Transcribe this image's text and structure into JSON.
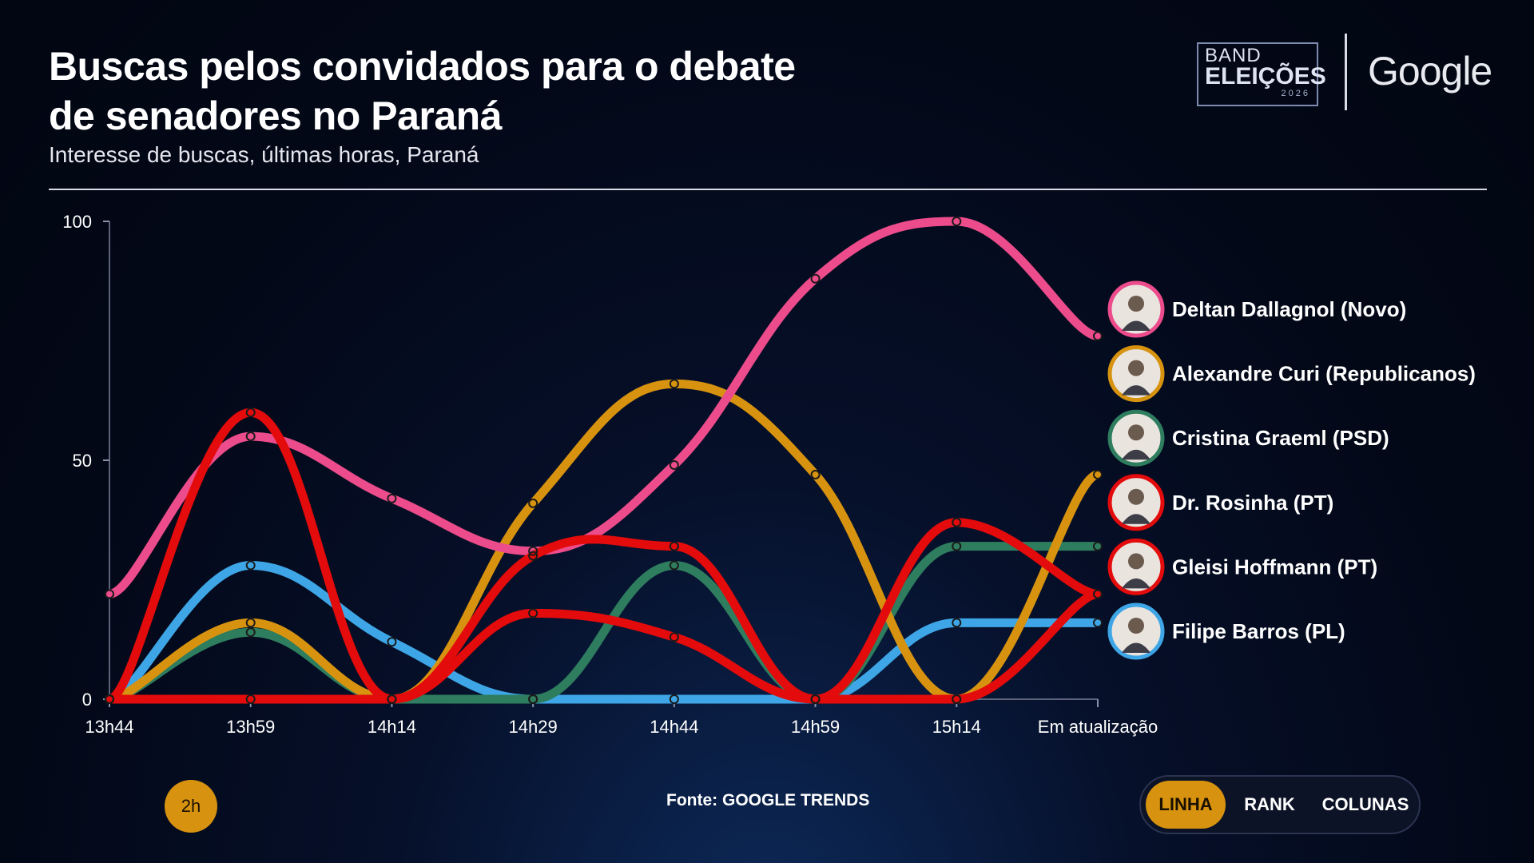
{
  "header": {
    "title_line1": "Buscas pelos convidados para o debate",
    "title_line2": "de senadores no Paraná",
    "subtitle": "Interesse de buscas, últimas horas, Paraná"
  },
  "logos": {
    "band_line1": "BAND",
    "band_line2": "ELEIÇÕES",
    "band_year": "2026",
    "google": "Google"
  },
  "chart_data": {
    "type": "line",
    "title": "Buscas pelos convidados para o debate de senadores no Paraná",
    "subtitle": "Interesse de buscas, últimas horas, Paraná",
    "x": [
      "13h44",
      "13h59",
      "14h14",
      "14h29",
      "14h44",
      "14h59",
      "15h14",
      "Em atualização"
    ],
    "ylim": [
      0,
      100
    ],
    "yticks": [
      0,
      50,
      100
    ],
    "grid": false,
    "legend_placement": "right",
    "series": [
      {
        "name": "Deltan Dallagnol (Novo)",
        "color": "#ec4c8b",
        "values": [
          22,
          55,
          42,
          31,
          49,
          88,
          100,
          76
        ]
      },
      {
        "name": "Alexandre Curi (Republicanos)",
        "color": "#d7930f",
        "values": [
          0,
          16,
          0,
          41,
          66,
          47,
          0,
          47
        ]
      },
      {
        "name": "Cristina Graeml (PSD)",
        "color": "#2e7d5e",
        "values": [
          0,
          14,
          0,
          0,
          28,
          0,
          32,
          32
        ]
      },
      {
        "name": "Dr. Rosinha (PT)",
        "color": "#e30b0b",
        "values": [
          0,
          0,
          0,
          18,
          13,
          0,
          0,
          22
        ]
      },
      {
        "name": "Gleisi Hoffmann (PT)",
        "color": "#e30b0b",
        "values": [
          0,
          60,
          0,
          30,
          32,
          0,
          37,
          22
        ]
      },
      {
        "name": "Filipe Barros (PL)",
        "color": "#3ea6e6",
        "values": [
          0,
          28,
          12,
          0,
          0,
          0,
          16,
          16
        ]
      }
    ]
  },
  "footer": {
    "time_range": "2h",
    "source": "Fonte: GOOGLE TRENDS",
    "views": [
      "LINHA",
      "RANK",
      "COLUNAS"
    ]
  }
}
